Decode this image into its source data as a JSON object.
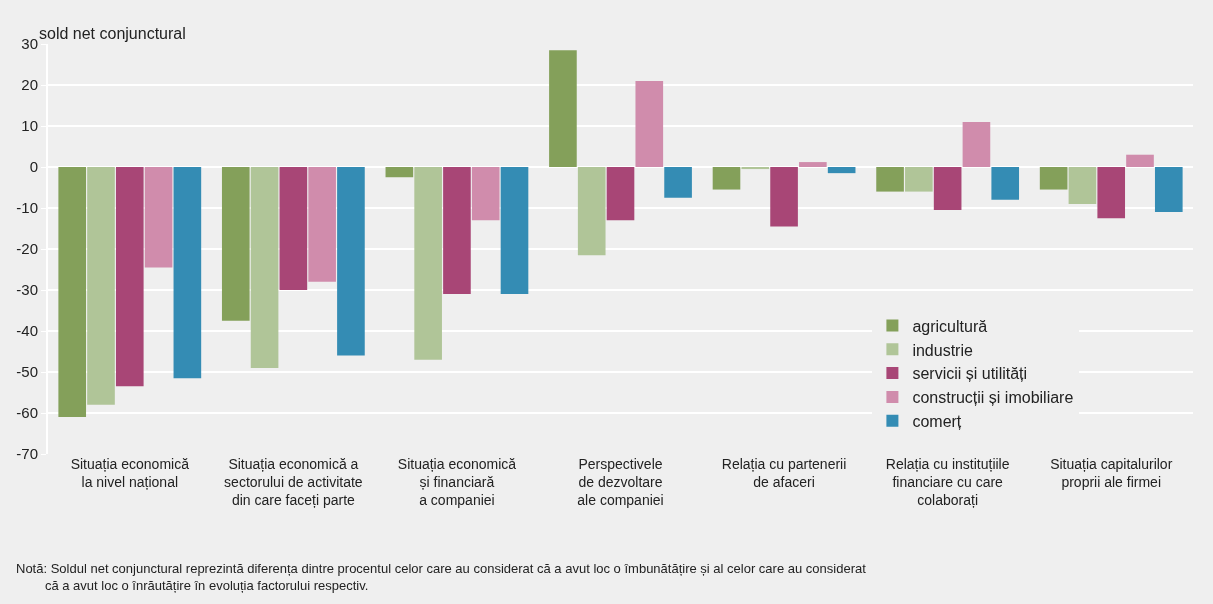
{
  "chart_data": {
    "type": "bar",
    "ylabel": "sold net conjunctural",
    "categories": [
      "Situația economică\nla nivel național",
      "Situația economică a\nsectorului de activitate\ndin care faceți parte",
      "Situația economică\nși financiară\na companiei",
      "Perspectivele\nde dezvoltare\nale companiei",
      "Relația cu partenerii\nde afaceri",
      "Relația cu instituțiile\nfinanciare cu care\ncolaborați",
      "Situația capitalurilor\nproprii ale firmei"
    ],
    "series": [
      {
        "name": "agricultură",
        "color": "#84a05a",
        "values": [
          -61,
          -37.5,
          -2.5,
          28.5,
          -5.5,
          -6,
          -5.5
        ]
      },
      {
        "name": "industrie",
        "color": "#b0c598",
        "values": [
          -58,
          -49,
          -47,
          -21.5,
          -0.5,
          -6,
          -9
        ]
      },
      {
        "name": "servicii și utilități",
        "color": "#a84676",
        "values": [
          -53.5,
          -30,
          -31,
          -13,
          -14.5,
          -10.5,
          -12.5
        ]
      },
      {
        "name": "construcții și imobiliare",
        "color": "#d08cac",
        "values": [
          -24.5,
          -28,
          -13,
          21,
          1.2,
          11,
          3
        ]
      },
      {
        "name": "comerț",
        "color": "#348cb4",
        "values": [
          -51.5,
          -46,
          -31,
          -7.5,
          -1.5,
          -8,
          -11
        ]
      }
    ],
    "ylim": [
      -70,
      30
    ],
    "yticks": [
      -70,
      -60,
      -50,
      -40,
      -30,
      -20,
      -10,
      0,
      10,
      20,
      30
    ],
    "grid": "y",
    "legend": "bottom right",
    "annotations": [
      "Notă: Soldul net conjunctural reprezintă diferența dintre procentul celor care au considerat că a avut loc o îmbunătățire și al celor care au considerat\n        că a avut loc o înrăutățire în evoluția factorului respectiv."
    ]
  }
}
